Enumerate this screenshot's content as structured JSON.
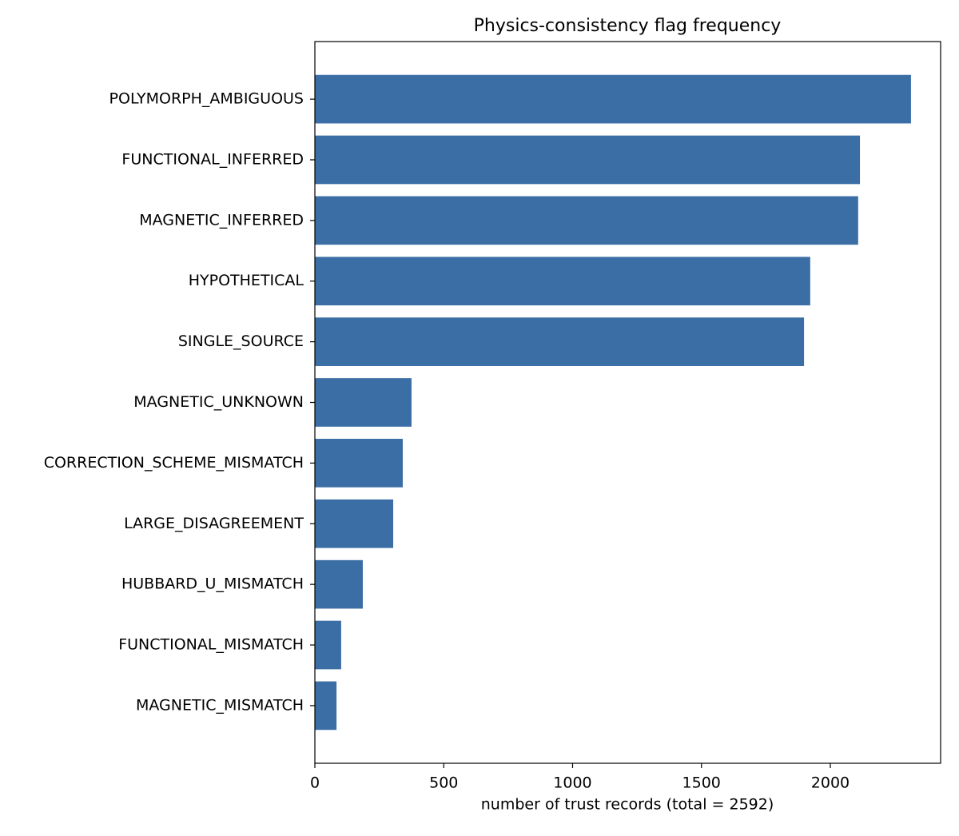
{
  "chart_data": {
    "type": "barh",
    "title": "Physics-consistency flag frequency",
    "x_label": "number of trust records (total = 2592)",
    "categories": [
      "POLYMORPH_AMBIGUOUS",
      "FUNCTIONAL_INFERRED",
      "MAGNETIC_INFERRED",
      "HYPOTHETICAL",
      "SINGLE_SOURCE",
      "MAGNETIC_UNKNOWN",
      "CORRECTION_SCHEME_MISMATCH",
      "LARGE_DISAGREEMENT",
      "HUBBARD_U_MISMATCH",
      "FUNCTIONAL_MISMATCH",
      "MAGNETIC_MISMATCH"
    ],
    "values": [
      2313,
      2115,
      2108,
      1922,
      1898,
      375,
      341,
      304,
      186,
      102,
      84
    ],
    "color": "#3a6ea5",
    "xlim": [
      0,
      2428
    ],
    "xticks": [
      0,
      500,
      1000,
      1500,
      2000
    ],
    "grid": false
  }
}
